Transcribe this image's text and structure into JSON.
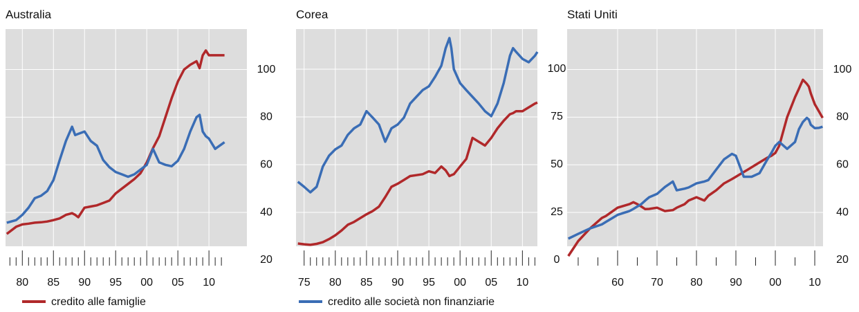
{
  "chart_data": [
    {
      "type": "line",
      "title": "Australia",
      "x": [
        1977.5,
        1979,
        1980,
        1981,
        1982,
        1983,
        1984,
        1985,
        1986,
        1987,
        1988,
        1988.5,
        1989,
        1990,
        1991,
        1992,
        1993,
        1994,
        1995,
        1996,
        1997,
        1998,
        1999,
        2000,
        2001,
        2002,
        2003,
        2004,
        2005,
        2006,
        2007,
        2008,
        2008.5,
        2009,
        2009.5,
        2010,
        2011,
        2012.5
      ],
      "series": [
        {
          "name": "credito alle famiglie",
          "color": "#b0282a",
          "values": [
            31,
            34,
            35,
            35.3,
            35.7,
            35.9,
            36.2,
            36.8,
            37.5,
            39,
            39.7,
            39,
            38,
            42,
            42.5,
            43,
            44,
            45,
            48,
            50,
            52,
            54,
            56.5,
            61,
            67,
            72,
            80,
            88,
            95,
            100,
            102,
            103.5,
            100.6,
            106,
            108,
            106,
            106,
            106
          ]
        },
        {
          "name": "credito alle società non finanziarie",
          "color": "#3a6db5",
          "values": [
            35.7,
            36.8,
            39,
            42,
            46,
            47,
            49,
            53.6,
            62,
            70,
            76,
            72.5,
            73,
            74,
            70,
            68,
            62,
            59,
            57,
            56,
            55,
            56,
            58,
            60,
            66.7,
            61,
            60,
            59.4,
            61.7,
            66.7,
            74,
            80,
            81,
            74,
            72,
            71,
            66.7,
            69.5
          ]
        }
      ],
      "xlim": [
        1977.3,
        2016.1
      ],
      "ylim": [
        20,
        117
      ],
      "xticks": [
        {
          "value": 1980,
          "label": "80"
        },
        {
          "value": 1985,
          "label": "85"
        },
        {
          "value": 1990,
          "label": "90"
        },
        {
          "value": 1995,
          "label": "95"
        },
        {
          "value": 2000,
          "label": "00"
        },
        {
          "value": 2005,
          "label": "05"
        },
        {
          "value": 2010,
          "label": "10"
        }
      ],
      "xminorticks": [
        1978,
        1979,
        1981,
        1982,
        1983,
        1984,
        1986,
        1987,
        1988,
        1989,
        1991,
        1992,
        1993,
        1994,
        1996,
        1997,
        1998,
        1999,
        2001,
        2002,
        2003,
        2004,
        2006,
        2007,
        2008,
        2009,
        2011,
        2012
      ],
      "yticks": [
        20,
        40,
        60,
        80,
        100
      ],
      "grid": true
    },
    {
      "type": "line",
      "title": "Corea",
      "x": [
        1974,
        1975,
        1976,
        1977,
        1978,
        1979,
        1980,
        1981,
        1982,
        1983,
        1984,
        1985,
        1986,
        1987,
        1988,
        1989,
        1990,
        1991,
        1992,
        1993,
        1994,
        1995,
        1996,
        1997,
        1997.7,
        1998.3,
        1998.6,
        1999,
        2000,
        2001,
        2002,
        2003,
        2004,
        2005,
        2006,
        2007,
        2008,
        2008.5,
        2009,
        2010,
        2011,
        2012,
        2012.4
      ],
      "series": [
        {
          "name": "credito alle famiglie",
          "color": "#b0282a",
          "values": [
            8.7,
            8.3,
            8,
            8.5,
            9.4,
            11,
            13,
            15.5,
            18.5,
            20,
            22,
            24,
            25.7,
            28,
            33,
            38.4,
            40,
            42,
            44,
            44.5,
            45,
            46.5,
            45.6,
            49,
            47,
            44,
            44.5,
            45,
            49,
            53,
            64,
            62,
            60,
            64,
            69,
            73,
            76.4,
            77,
            78,
            78,
            80,
            82,
            82.5
          ]
        },
        {
          "name": "credito alle società non finanziarie",
          "color": "#3a6db5",
          "values": [
            41,
            38.4,
            35.5,
            38.4,
            49,
            54.7,
            58,
            60,
            65.6,
            69,
            71,
            78,
            74.6,
            71,
            62,
            69,
            71,
            74.6,
            82,
            85.5,
            89,
            91,
            96,
            101.8,
            111,
            116.3,
            111,
            100,
            92.7,
            89,
            85.5,
            82,
            78,
            75.4,
            82,
            92.7,
            107,
            111,
            109,
            105.4,
            103.6,
            107,
            109
          ]
        }
      ],
      "xlim": [
        1973.7,
        2012.4
      ],
      "ylim": [
        0,
        121
      ],
      "xticks": [
        {
          "value": 1975,
          "label": "75"
        },
        {
          "value": 1980,
          "label": "80"
        },
        {
          "value": 1985,
          "label": "85"
        },
        {
          "value": 1990,
          "label": "90"
        },
        {
          "value": 1995,
          "label": "95"
        },
        {
          "value": 2000,
          "label": "00"
        },
        {
          "value": 2005,
          "label": "05"
        },
        {
          "value": 2010,
          "label": "10"
        }
      ],
      "xminorticks": [
        1976,
        1977,
        1978,
        1979,
        1981,
        1982,
        1983,
        1984,
        1986,
        1987,
        1988,
        1989,
        1991,
        1992,
        1993,
        1994,
        1996,
        1997,
        1998,
        1999,
        2001,
        2002,
        2003,
        2004,
        2006,
        2007,
        2008,
        2009,
        2011,
        2012
      ],
      "yticks": [
        0,
        25,
        50,
        75,
        100
      ],
      "grid": true
    },
    {
      "type": "line",
      "title": "Stati Uniti",
      "x": [
        1947.5,
        1950,
        1953,
        1956,
        1957,
        1960,
        1963,
        1964,
        1965,
        1966,
        1967,
        1968,
        1970,
        1972,
        1974,
        1975,
        1977,
        1978,
        1980,
        1982,
        1983,
        1985,
        1987,
        1989,
        1990,
        1992,
        1993,
        1994,
        1996,
        1998,
        1999,
        2000,
        2001,
        2003,
        2005,
        2006,
        2007,
        2008,
        2008.5,
        2009,
        2010,
        2011,
        2012
      ],
      "series": [
        {
          "name": "credito alle famiglie",
          "color": "#b0282a",
          "values": [
            21.7,
            28,
            33.3,
            37.7,
            38.5,
            42,
            43.5,
            44.3,
            43.5,
            42.5,
            41.4,
            41.5,
            42,
            40.6,
            41,
            42,
            43.5,
            45,
            46.4,
            45,
            47,
            49.3,
            52.2,
            54,
            55,
            57,
            58,
            59,
            61,
            63,
            63.8,
            65,
            68,
            80,
            88.4,
            92,
            95.7,
            94,
            92.8,
            90,
            85.5,
            82.6,
            79.7
          ]
        },
        {
          "name": "credito alle società non finanziarie",
          "color": "#3a6db5",
          "values": [
            29,
            31,
            33.3,
            35,
            36,
            39,
            40.6,
            41.5,
            42.5,
            43.5,
            45,
            46.4,
            47.8,
            50.7,
            53,
            49.3,
            50,
            50.5,
            52.2,
            53,
            53.6,
            58,
            62.3,
            64.6,
            63.8,
            55,
            55,
            55,
            56.5,
            62.3,
            65,
            68,
            69.6,
            66.7,
            69.6,
            75,
            78,
            79.7,
            79,
            76.8,
            75.4,
            75.5,
            76
          ]
        }
      ],
      "xlim": [
        1947.2,
        2012.1
      ],
      "ylim": [
        20,
        117
      ],
      "xticks": [
        {
          "value": 1960,
          "label": "60"
        },
        {
          "value": 1970,
          "label": "70"
        },
        {
          "value": 1980,
          "label": "80"
        },
        {
          "value": 1990,
          "label": "90"
        },
        {
          "value": 2000,
          "label": "00"
        },
        {
          "value": 2010,
          "label": "10"
        }
      ],
      "xminorticks": [
        1950,
        1955,
        1965,
        1975,
        1985,
        1995,
        2005
      ],
      "yticks": [
        20,
        40,
        60,
        80,
        100
      ],
      "grid": true
    }
  ]
}
